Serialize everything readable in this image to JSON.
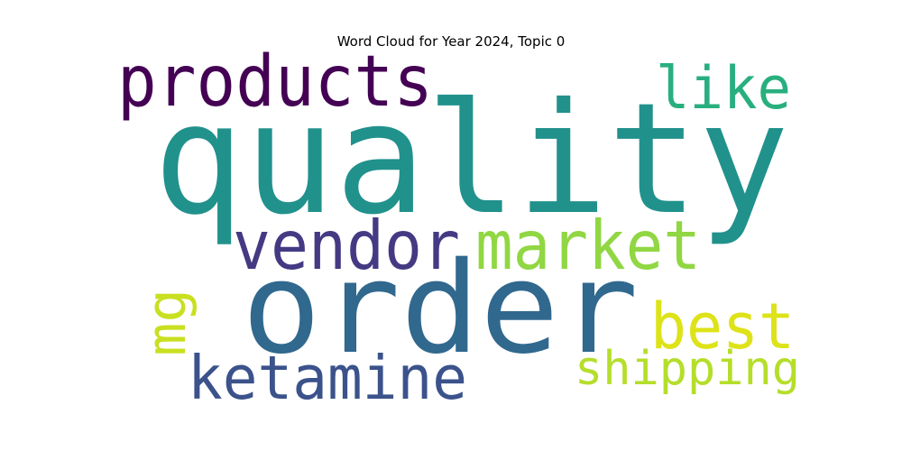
{
  "title": "Word Cloud for Year 2024, Topic 0",
  "words": [
    {
      "text": "quality",
      "weight": 1.0,
      "color": "#21918c"
    },
    {
      "text": "order",
      "weight": 0.82,
      "color": "#31688e"
    },
    {
      "text": "products",
      "weight": 0.55,
      "color": "#440154"
    },
    {
      "text": "vendor",
      "weight": 0.48,
      "color": "#443a83"
    },
    {
      "text": "market",
      "weight": 0.45,
      "color": "#90d743"
    },
    {
      "text": "ketamine",
      "weight": 0.42,
      "color": "#3b528b"
    },
    {
      "text": "best",
      "weight": 0.38,
      "color": "#dde318"
    },
    {
      "text": "like",
      "weight": 0.36,
      "color": "#29af7f"
    },
    {
      "text": "shipping",
      "weight": 0.34,
      "color": "#b5de2b"
    },
    {
      "text": "mg",
      "weight": 0.3,
      "color": "#c8e020"
    }
  ]
}
